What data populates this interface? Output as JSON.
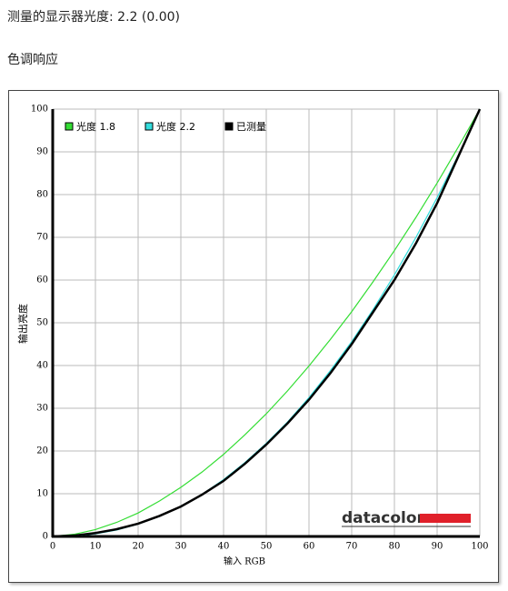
{
  "header": {
    "measured_gamma": "测量的显示器光度: 2.2 (0.00)",
    "section": "色调响应"
  },
  "chart_data": {
    "type": "line",
    "x_label": "输入 RGB",
    "y_label": "输出亮度",
    "logo": "datacolor",
    "x": [
      0,
      5,
      10,
      15,
      20,
      25,
      30,
      35,
      40,
      45,
      50,
      55,
      60,
      65,
      70,
      75,
      80,
      85,
      90,
      95,
      100
    ],
    "series": [
      {
        "name": "光度 1.8",
        "color": "#33dd33",
        "values": [
          0,
          0.5,
          1.6,
          3.3,
          5.5,
          8.3,
          11.5,
          15.1,
          19.2,
          23.8,
          28.7,
          34.1,
          39.9,
          46.1,
          52.6,
          59.6,
          66.9,
          74.6,
          82.7,
          91.2,
          100
        ]
      },
      {
        "name": "光度 2.2",
        "color": "#33dddd",
        "values": [
          0,
          0.1,
          0.6,
          1.5,
          2.9,
          4.7,
          7.1,
          9.9,
          13.3,
          17.3,
          21.8,
          26.8,
          32.5,
          38.8,
          45.6,
          53.1,
          61.2,
          69.9,
          79.3,
          89.3,
          100
        ]
      },
      {
        "name": "已测量",
        "color": "#000000",
        "values": [
          0,
          0.2,
          0.8,
          1.7,
          3,
          4.8,
          7,
          9.8,
          13,
          17,
          21.5,
          26.5,
          32,
          38.2,
          45,
          52.5,
          60,
          68.5,
          78,
          89,
          100
        ]
      }
    ],
    "xlim": [
      0,
      100
    ],
    "ylim": [
      0,
      100
    ],
    "xticks": [
      0,
      10,
      20,
      30,
      40,
      50,
      60,
      70,
      80,
      90,
      100
    ],
    "yticks": [
      0,
      10,
      20,
      30,
      40,
      50,
      60,
      70,
      80,
      90,
      100
    ],
    "grid": true,
    "legend": "top-left"
  }
}
